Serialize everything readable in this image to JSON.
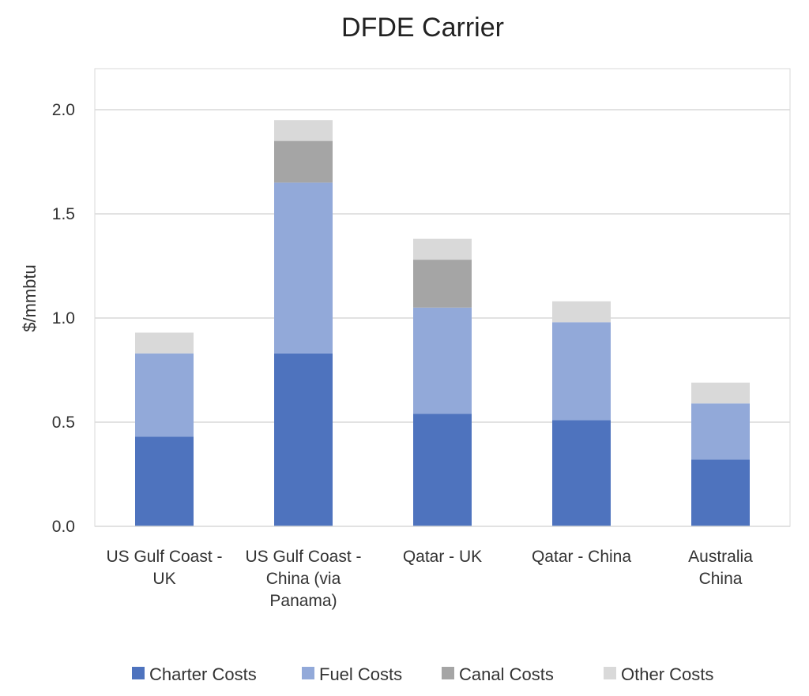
{
  "chart_data": {
    "type": "bar",
    "stacked": true,
    "title": "DFDE Carrier",
    "xlabel": "",
    "ylabel": "$/mmbtu",
    "ylim": [
      0,
      2.2
    ],
    "yticks": [
      "0.0",
      "0.5",
      "1.0",
      "1.5",
      "2.0"
    ],
    "ytick_values": [
      0,
      0.5,
      1.0,
      1.5,
      2.0
    ],
    "grid": true,
    "legend_position": "bottom",
    "categories": [
      [
        "US Gulf Coast -",
        "UK"
      ],
      [
        "US Gulf Coast -",
        "China (via",
        "Panama)"
      ],
      [
        "Qatar - UK"
      ],
      [
        "Qatar - China"
      ],
      [
        "Australia",
        "China"
      ]
    ],
    "series": [
      {
        "name": "Charter Costs",
        "color": "#4e73be",
        "values": [
          0.43,
          0.83,
          0.54,
          0.51,
          0.32
        ]
      },
      {
        "name": "Fuel Costs",
        "color": "#92a9d9",
        "values": [
          0.4,
          0.82,
          0.51,
          0.47,
          0.27
        ]
      },
      {
        "name": "Canal Costs",
        "color": "#a5a5a5",
        "values": [
          0.0,
          0.2,
          0.23,
          0.0,
          0.0
        ]
      },
      {
        "name": "Other Costs",
        "color": "#d9d9d9",
        "values": [
          0.1,
          0.1,
          0.1,
          0.1,
          0.1
        ]
      }
    ]
  }
}
